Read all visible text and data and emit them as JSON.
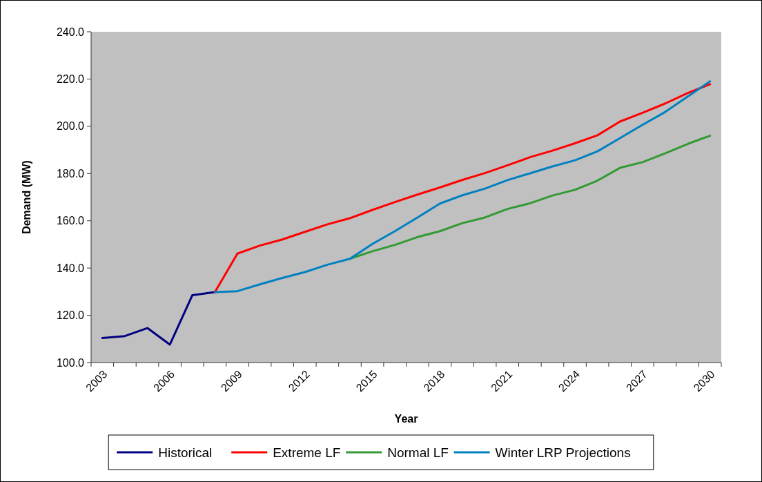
{
  "chart_data": {
    "type": "line",
    "xlabel": "Year",
    "ylabel": "Demand (MW)",
    "categories": [
      "2003",
      null,
      null,
      "2006",
      null,
      null,
      "2009",
      null,
      null,
      "2012",
      null,
      null,
      "2015",
      null,
      null,
      "2018",
      null,
      null,
      "2021",
      null,
      null,
      "2024",
      null,
      null,
      "2027",
      null,
      null,
      "2030"
    ],
    "ylim": [
      100,
      240
    ],
    "yticks": [
      {
        "value": 100,
        "label": "100.0"
      },
      {
        "value": 120,
        "label": "120.0"
      },
      {
        "value": 140,
        "label": "140.0"
      },
      {
        "value": 160,
        "label": "160.0"
      },
      {
        "value": 180,
        "label": "180.0"
      },
      {
        "value": 200,
        "label": "200.0"
      },
      {
        "value": 220,
        "label": "220.0"
      },
      {
        "value": 240,
        "label": "240.0"
      }
    ],
    "series": [
      {
        "name": "Historical",
        "color": "#000080",
        "values": [
          110.4,
          111.2,
          114.6,
          107.6,
          128.5,
          129.8,
          null,
          null,
          null,
          null,
          null,
          null,
          null,
          null,
          null,
          null,
          null,
          null,
          null,
          null,
          null,
          null,
          null,
          null,
          null,
          null,
          null,
          null
        ]
      },
      {
        "name": "Extreme LF",
        "color": "#ff0000",
        "values": [
          null,
          null,
          null,
          null,
          null,
          129.8,
          146.1,
          149.5,
          152.1,
          155.3,
          158.5,
          161.1,
          164.6,
          167.9,
          171.1,
          174.1,
          177.3,
          180.2,
          183.5,
          186.9,
          189.7,
          192.8,
          196.2,
          202.0,
          205.7,
          209.6,
          214.0,
          217.8
        ]
      },
      {
        "name": "Normal LF",
        "color": "#339933",
        "values": [
          null,
          null,
          null,
          null,
          null,
          null,
          null,
          null,
          null,
          null,
          null,
          143.9,
          147.1,
          149.8,
          153.1,
          155.6,
          159.0,
          161.4,
          165.0,
          167.4,
          170.7,
          173.1,
          177.0,
          182.4,
          184.8,
          188.5,
          192.5,
          196.0
        ]
      },
      {
        "name": "Winter LRP Projections",
        "color": "#0080c0",
        "values": [
          null,
          null,
          null,
          null,
          null,
          129.8,
          130.2,
          133.1,
          135.8,
          138.3,
          141.4,
          143.9,
          150.2,
          155.6,
          161.4,
          167.3,
          170.8,
          173.6,
          177.2,
          180.1,
          183.0,
          185.6,
          189.4,
          195.0,
          200.6,
          206.0,
          212.5,
          219.0
        ]
      }
    ],
    "legend": "bottom",
    "grid": false
  }
}
